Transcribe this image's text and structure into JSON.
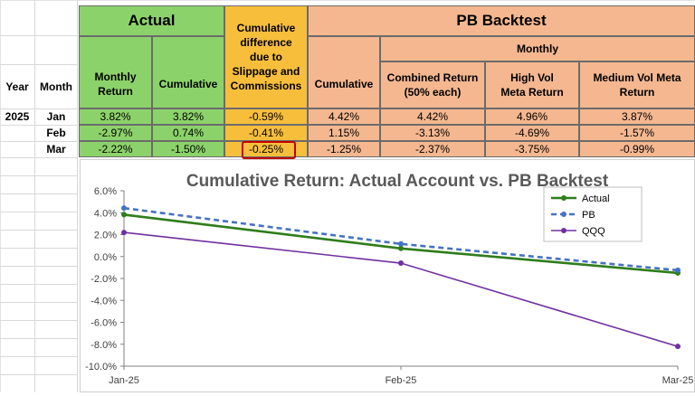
{
  "header": {
    "actual": "Actual",
    "cumdiff": "Cumulative difference due to Slippage and Commissions",
    "pb_backtest": "PB Backtest",
    "monthly": "Monthly",
    "year": "Year",
    "month": "Month",
    "monthly_return": "Monthly Return",
    "cumulative_actual": "Cumulative",
    "cumulative_pb": "Cumulative",
    "combined_return": "Combined Return (50% each)",
    "high_vol": "High Vol Meta Return",
    "medium_vol": "Medium Vol Meta Return"
  },
  "rows": [
    {
      "year": "2025",
      "month": "Jan",
      "monthly_return": "3.82%",
      "cumulative": "3.82%",
      "diff": "-0.59%",
      "pb_cumulative": "4.42%",
      "combined": "4.42%",
      "high_vol": "4.96%",
      "medium_vol": "3.87%"
    },
    {
      "year": "",
      "month": "Feb",
      "monthly_return": "-2.97%",
      "cumulative": "0.74%",
      "diff": "-0.41%",
      "pb_cumulative": "1.15%",
      "combined": "-3.13%",
      "high_vol": "-4.69%",
      "medium_vol": "-1.57%"
    },
    {
      "year": "",
      "month": "Mar",
      "monthly_return": "-2.22%",
      "cumulative": "-1.50%",
      "diff": "-0.25%",
      "pb_cumulative": "-1.25%",
      "combined": "-2.37%",
      "high_vol": "-3.75%",
      "medium_vol": "-0.99%"
    }
  ],
  "colors": {
    "actual": "#2e7d1a",
    "pb": "#4472c4",
    "qqq": "#7030a0",
    "highlight": "#c00000"
  },
  "chart_data": {
    "type": "line",
    "title": "Cumulative Return:  Actual Account vs. PB Backtest",
    "categories": [
      "Jan-25",
      "Feb-25",
      "Mar-25"
    ],
    "series": [
      {
        "name": "Actual",
        "values": [
          3.82,
          0.74,
          -1.5
        ]
      },
      {
        "name": "PB",
        "values": [
          4.42,
          1.15,
          -1.25
        ]
      },
      {
        "name": "QQQ",
        "values": [
          2.2,
          -0.6,
          -8.2
        ]
      }
    ],
    "ylim": [
      -10,
      6
    ],
    "yticks": [
      "6.0%",
      "4.0%",
      "2.0%",
      "0.0%",
      "-2.0%",
      "-4.0%",
      "-6.0%",
      "-8.0%",
      "-10.0%"
    ],
    "xlabel": "",
    "ylabel": "",
    "legend": "top-right"
  }
}
